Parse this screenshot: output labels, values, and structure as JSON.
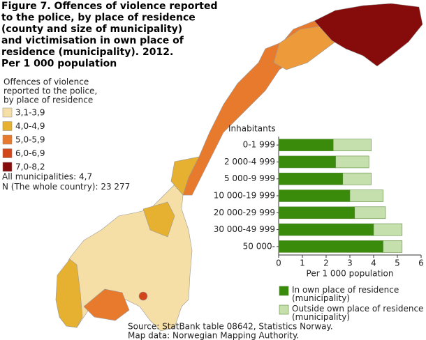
{
  "figure": {
    "title_lines": [
      "Figure 7. Offences of violence reported",
      "to the police, by place of residence",
      "(county and size of municipality)",
      "and victimisation in own place of",
      "residence (municipality). 2012.",
      "Per 1 000 population"
    ]
  },
  "map": {
    "legend_title_lines": [
      "Offences of violence",
      "reported to the police,",
      "by place of residence"
    ],
    "classes": [
      {
        "label": "3,1-3,9",
        "color": "#f6dfa6"
      },
      {
        "label": "4,0-4,9",
        "color": "#e6b030"
      },
      {
        "label": "5,0-5,9",
        "color": "#e87a2e"
      },
      {
        "label": "6,0-6,9",
        "color": "#d2461a"
      },
      {
        "label": "7,0-8,2",
        "color": "#860b0b"
      }
    ],
    "notes": [
      "All municipalities: 4,7",
      "N (The whole country): 23 277"
    ]
  },
  "chart_data": {
    "type": "stacked-barh",
    "category_axis_label": "Inhabitants",
    "x_label": "Per 1 000 population",
    "categories": [
      "0-1 999",
      "2 000-4 999",
      "5 000-9 999",
      "10 000-19 999",
      "20 000-29 999",
      "30 000-49 999",
      "50 000-"
    ],
    "series": [
      {
        "name": "In own place of residence (municipality)",
        "color": "#3a8a0c",
        "values": [
          2.3,
          2.4,
          2.7,
          3.0,
          3.2,
          4.0,
          4.4
        ]
      },
      {
        "name": "Outside own place of residence (municipality)",
        "color": "#c6e0ad",
        "values": [
          1.6,
          1.4,
          1.2,
          1.4,
          1.3,
          1.2,
          0.8
        ]
      }
    ],
    "xlim": [
      0,
      6
    ],
    "xticks": [
      0,
      1,
      2,
      3,
      4,
      5,
      6
    ]
  },
  "source": [
    "Source: StatBank table 08642, Statistics Norway.",
    "Map data: Norwegian Mapping Authority."
  ]
}
